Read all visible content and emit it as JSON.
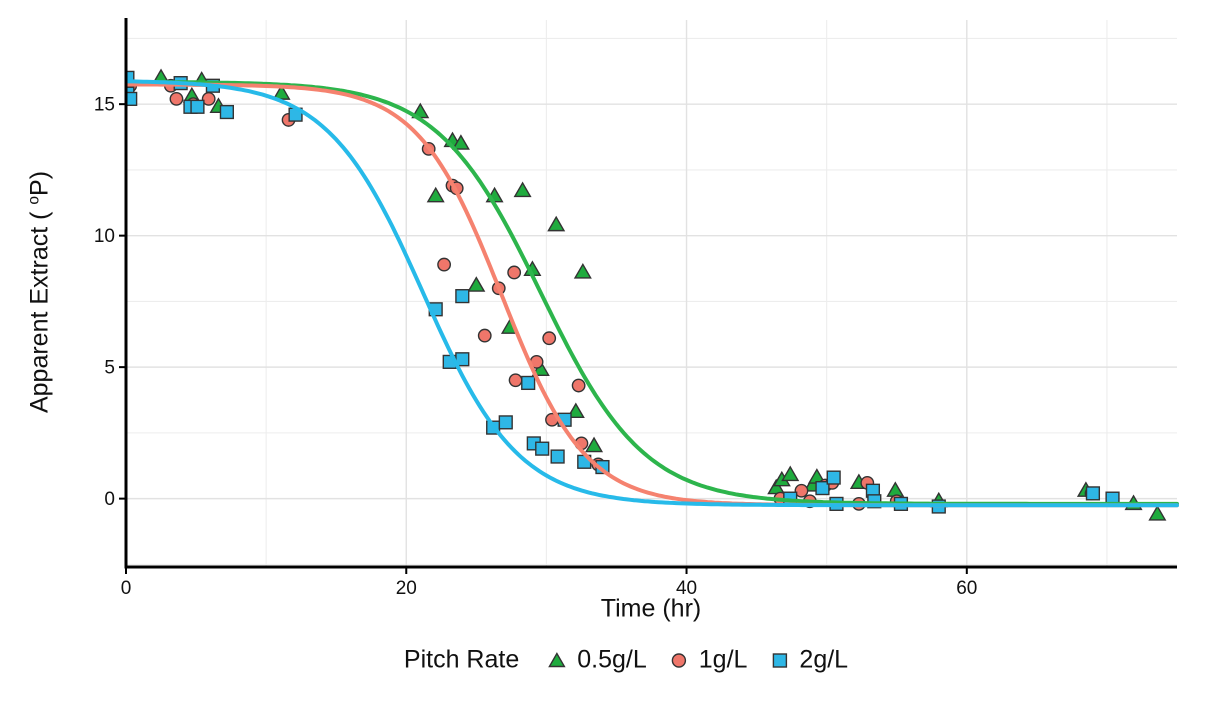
{
  "chart_data": {
    "type": "scatter",
    "curve_type": "logistic-fit",
    "title": "",
    "xlabel": "Time (hr)",
    "ylabel": "Apparent Extract (°P)",
    "ylabel_parts": {
      "pre": "Apparent Extract ( ",
      "sup": "o",
      "post": "P)"
    },
    "xlim": [
      0,
      75
    ],
    "ylim": [
      -2.6,
      18.2
    ],
    "x_ticks": [
      0,
      20,
      40,
      60
    ],
    "x_minor_gridlines": [
      10,
      30,
      50,
      70
    ],
    "y_ticks": [
      0,
      5,
      10,
      15
    ],
    "y_minor_gridlines": [
      -2.5,
      2.5,
      7.5,
      12.5,
      17.5
    ],
    "grid": "major+minor, light gray on white",
    "legend_position": "bottom",
    "legend_title": "Pitch Rate",
    "axis_color": "#000000",
    "grid_major_color": "#e2e2e2",
    "grid_minor_color": "#ededed",
    "series": [
      {
        "name": "0.5g/L",
        "marker": "triangle",
        "marker_color": "#1FAB3E",
        "marker_stroke": "#333333",
        "line_color": "#2DB54C",
        "fit_logistic": {
          "upper": 15.85,
          "lower": -0.2,
          "midpoint_hr": 29.6,
          "scale_hr": 3.7
        },
        "points": [
          [
            2.5,
            16.0
          ],
          [
            4.7,
            15.3
          ],
          [
            5.4,
            15.9
          ],
          [
            6.6,
            14.9
          ],
          [
            11.1,
            15.4
          ],
          [
            21.0,
            14.7
          ],
          [
            22.1,
            11.5
          ],
          [
            23.3,
            13.6
          ],
          [
            23.9,
            13.5
          ],
          [
            26.3,
            11.5
          ],
          [
            28.3,
            11.7
          ],
          [
            30.7,
            10.4
          ],
          [
            25.0,
            8.1
          ],
          [
            29.0,
            8.7
          ],
          [
            32.6,
            8.6
          ],
          [
            27.4,
            6.5
          ],
          [
            29.6,
            4.9
          ],
          [
            32.1,
            3.3
          ],
          [
            33.4,
            2.0
          ],
          [
            46.4,
            0.4
          ],
          [
            46.8,
            0.7
          ],
          [
            47.4,
            0.9
          ],
          [
            49.0,
            0.5
          ],
          [
            49.3,
            0.8
          ],
          [
            52.3,
            0.6
          ],
          [
            54.9,
            0.3
          ],
          [
            58.0,
            -0.1
          ],
          [
            68.5,
            0.3
          ],
          [
            71.9,
            -0.2
          ],
          [
            73.6,
            -0.6
          ]
        ]
      },
      {
        "name": "1g/L",
        "marker": "circle",
        "marker_color": "#EF766A",
        "marker_stroke": "#333333",
        "line_color": "#F5826F",
        "fit_logistic": {
          "upper": 15.75,
          "lower": -0.25,
          "midpoint_hr": 26.8,
          "scale_hr": 3.0
        },
        "points": [
          [
            0.3,
            15.7
          ],
          [
            3.2,
            15.7
          ],
          [
            3.6,
            15.2
          ],
          [
            4.8,
            15.0
          ],
          [
            5.9,
            15.2
          ],
          [
            11.6,
            14.4
          ],
          [
            21.6,
            13.3
          ],
          [
            23.3,
            11.9
          ],
          [
            23.6,
            11.8
          ],
          [
            22.7,
            8.9
          ],
          [
            25.6,
            6.2
          ],
          [
            26.6,
            8.0
          ],
          [
            27.7,
            8.6
          ],
          [
            27.8,
            4.5
          ],
          [
            29.3,
            5.2
          ],
          [
            30.2,
            6.1
          ],
          [
            30.4,
            3.0
          ],
          [
            32.3,
            4.3
          ],
          [
            32.5,
            2.1
          ],
          [
            33.7,
            1.3
          ],
          [
            46.7,
            0.0
          ],
          [
            48.2,
            0.3
          ],
          [
            48.8,
            -0.1
          ],
          [
            49.9,
            0.5
          ],
          [
            50.4,
            0.6
          ],
          [
            52.3,
            -0.2
          ],
          [
            52.9,
            0.6
          ],
          [
            55.0,
            -0.1
          ],
          [
            68.9,
            0.2
          ]
        ]
      },
      {
        "name": "2g/L",
        "marker": "square",
        "marker_color": "#2EB7E6",
        "marker_stroke": "#333333",
        "line_color": "#27BAE9",
        "fit_logistic": {
          "upper": 15.9,
          "lower": -0.25,
          "midpoint_hr": 21.2,
          "scale_hr": 3.4
        },
        "points": [
          [
            0.1,
            16.0
          ],
          [
            0.1,
            15.4
          ],
          [
            0.3,
            15.2
          ],
          [
            3.9,
            15.8
          ],
          [
            4.6,
            14.9
          ],
          [
            5.1,
            14.9
          ],
          [
            6.2,
            15.7
          ],
          [
            7.2,
            14.7
          ],
          [
            12.1,
            14.6
          ],
          [
            22.1,
            7.2
          ],
          [
            24.0,
            7.7
          ],
          [
            23.1,
            5.2
          ],
          [
            24.0,
            5.3
          ],
          [
            26.2,
            2.7
          ],
          [
            27.1,
            2.9
          ],
          [
            28.7,
            4.4
          ],
          [
            29.1,
            2.1
          ],
          [
            29.7,
            1.9
          ],
          [
            30.8,
            1.6
          ],
          [
            31.3,
            3.0
          ],
          [
            32.7,
            1.4
          ],
          [
            34.0,
            1.2
          ],
          [
            47.4,
            0.0
          ],
          [
            49.7,
            0.4
          ],
          [
            50.5,
            0.8
          ],
          [
            50.7,
            -0.2
          ],
          [
            53.3,
            0.3
          ],
          [
            53.4,
            -0.1
          ],
          [
            55.3,
            -0.2
          ],
          [
            58.0,
            -0.3
          ],
          [
            69.0,
            0.2
          ],
          [
            70.4,
            0.0
          ]
        ]
      }
    ]
  }
}
